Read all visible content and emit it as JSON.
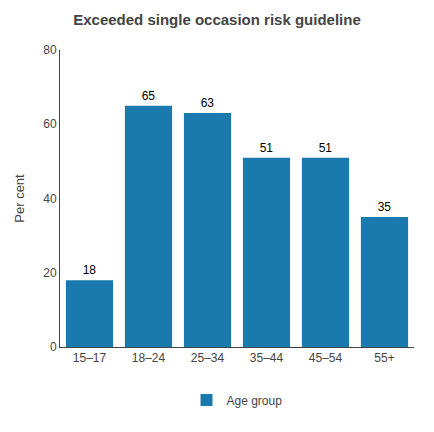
{
  "chart_data": {
    "type": "bar",
    "title": "Exceeded single occasion risk guideline",
    "categories": [
      "15–17",
      "18–24",
      "25–34",
      "35–44",
      "45–54",
      "55+"
    ],
    "series": [
      {
        "name": "Age group",
        "color": "#1a7aad",
        "values": [
          18,
          65,
          63,
          51,
          51,
          35
        ]
      }
    ],
    "ylabel": "Per cent",
    "ylim": [
      0,
      80
    ],
    "yticks": [
      0,
      20,
      40,
      60,
      80
    ],
    "grid": false,
    "legend": "bottom",
    "data_labels": true
  }
}
